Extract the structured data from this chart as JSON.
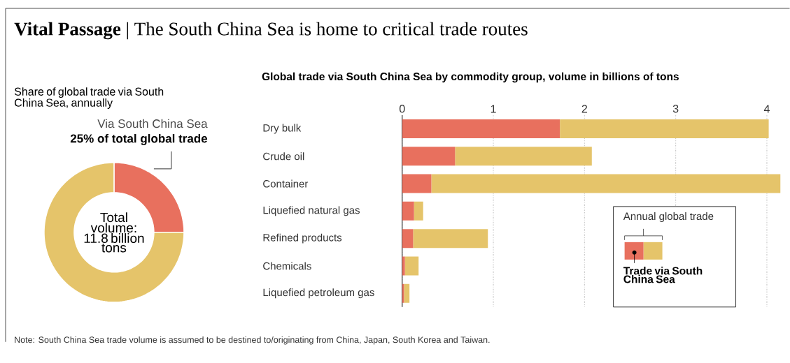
{
  "chart_data": [
    {
      "type": "donut",
      "title": "**Vital Passage** | The South China Sea is home to critical trade routes",
      "subtitle": "Share of global trade via South China Sea, annually",
      "categories": [
        "Via South China Sea",
        null
      ],
      "values": [
        25,
        75
      ],
      "colors": [
        "#e8705e",
        "#e5c46a"
      ],
      "value_labels": [
        "25% of total global trade",
        null
      ],
      "annotations": [
        "Total volume: 11.8 billion tons"
      ]
    },
    {
      "type": "bar",
      "orientation": "horizontal",
      "stacked": true,
      "title": "Global trade via South China Sea by commodity group, volume in billions of tons",
      "categories": [
        "Dry bulk",
        "Crude oil",
        "Container",
        "Liquefied natural gas",
        "Refined products",
        "Chemicals",
        "Liquefied petroleum gas"
      ],
      "series": [
        {
          "name": "Trade via South China Sea",
          "color": "#e8705e",
          "values": [
            1.73,
            0.58,
            0.32,
            0.13,
            0.12,
            0.03,
            0.02
          ]
        },
        {
          "name": "Annual global trade",
          "color": "#e5c46a",
          "values": [
            2.29,
            1.5,
            3.83,
            0.1,
            0.82,
            0.15,
            0.06
          ]
        }
      ],
      "xlim": [
        0,
        4.15
      ],
      "xticks": [
        0,
        1,
        2,
        3,
        4
      ],
      "grid": "x",
      "legend": "bottom right",
      "annotations": [
        "Note: South China Sea trade volume is assumed to be destined to/originating from China, Japan, South Korea and Taiwan."
      ]
    }
  ]
}
